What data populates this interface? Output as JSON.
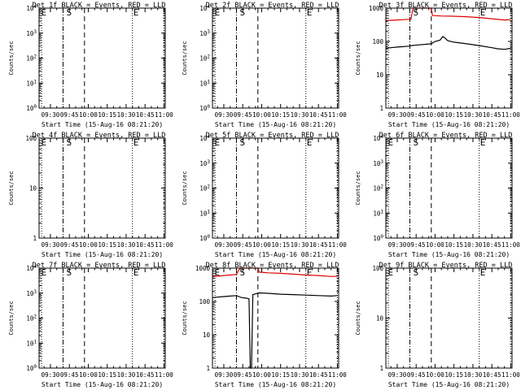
{
  "figure": {
    "xlabel": "Start Time (15-Aug-16 08:21:20)",
    "ylabel": "Counts/sec",
    "x_tick_labels": [
      "09:30",
      "09:45",
      "10:00",
      "10:15",
      "10:30",
      "10:45",
      "11:00"
    ],
    "marker_E": "E",
    "marker_S": "S",
    "colors": {
      "events": "#000000",
      "lld": "#dd0000"
    }
  },
  "chart_data": [
    {
      "type": "line",
      "title": "Det 1f BLACK = Events, RED = LLD",
      "yscale": "log",
      "xlim": [
        "09:21",
        "11:01"
      ],
      "ylim": [
        1,
        10000
      ],
      "y_tick_labels": [
        "10^0",
        "10^1",
        "10^2",
        "10^3",
        "10^4"
      ],
      "series": [],
      "markers": [
        "E",
        "S",
        "E"
      ]
    },
    {
      "type": "line",
      "title": "Det 2f BLACK = Events, RED = LLD",
      "yscale": "log",
      "xlim": [
        "09:21",
        "11:01"
      ],
      "ylim": [
        1,
        10000
      ],
      "y_tick_labels": [
        "10^0",
        "10^1",
        "10^2",
        "10^3",
        "10^4"
      ],
      "series": [],
      "markers": [
        "E",
        "S",
        "E"
      ]
    },
    {
      "type": "line",
      "title": "Det 3f BLACK = Events, RED = LLD",
      "yscale": "log",
      "xlim": [
        "09:21",
        "11:01"
      ],
      "ylim": [
        1,
        1000
      ],
      "y_tick_labels": [
        "1",
        "10",
        "100",
        "1000"
      ],
      "series": [
        {
          "color": "#dd0000",
          "x": [
            "09:21",
            "09:25",
            "09:30",
            "09:35",
            "09:39",
            "09:41",
            "09:42",
            "09:43",
            "09:44",
            "09:48",
            "09:55",
            "09:57",
            "09:58",
            "10:05",
            "10:15",
            "10:25",
            "10:35",
            "10:45",
            "10:55",
            "11:00"
          ],
          "y": [
            420,
            430,
            440,
            450,
            460,
            470,
            800,
            1000,
            1000,
            1000,
            1000,
            1000,
            600,
            580,
            570,
            550,
            520,
            480,
            440,
            450
          ]
        },
        {
          "color": "#000000",
          "x": [
            "09:21",
            "09:25",
            "09:30",
            "09:35",
            "09:39",
            "09:41",
            "09:57",
            "09:58",
            "10:00",
            "10:04",
            "10:06",
            "10:08",
            "10:10",
            "10:15",
            "10:25",
            "10:35",
            "10:45",
            "10:50",
            "10:55",
            "11:00"
          ],
          "y": [
            62,
            65,
            68,
            70,
            72,
            75,
            85,
            90,
            100,
            110,
            140,
            125,
            105,
            95,
            85,
            75,
            65,
            60,
            58,
            62
          ]
        }
      ],
      "markers": [
        "S",
        "E"
      ]
    },
    {
      "type": "line",
      "title": "Det 4f BLACK = Events, RED = LLD",
      "yscale": "log",
      "xlim": [
        "09:21",
        "11:01"
      ],
      "ylim": [
        1,
        100
      ],
      "y_tick_labels": [
        "1",
        "10",
        "100"
      ],
      "series": [],
      "markers": [
        "E",
        "S",
        "E"
      ]
    },
    {
      "type": "line",
      "title": "Det 5f BLACK = Events, RED = LLD",
      "yscale": "log",
      "xlim": [
        "09:21",
        "11:01"
      ],
      "ylim": [
        1,
        10000
      ],
      "y_tick_labels": [
        "10^0",
        "10^1",
        "10^2",
        "10^3",
        "10^4"
      ],
      "series": [],
      "markers": [
        "E",
        "S",
        "E"
      ]
    },
    {
      "type": "line",
      "title": "Det 6f BLACK = Events, RED = LLD",
      "yscale": "log",
      "xlim": [
        "09:21",
        "11:01"
      ],
      "ylim": [
        1,
        10000
      ],
      "y_tick_labels": [
        "10^0",
        "10^1",
        "10^2",
        "10^3",
        "10^4"
      ],
      "series": [],
      "markers": [
        "E",
        "S",
        "E"
      ]
    },
    {
      "type": "line",
      "title": "Det 7f BLACK = Events, RED = LLD",
      "yscale": "log",
      "xlim": [
        "09:21",
        "11:01"
      ],
      "ylim": [
        1,
        10000
      ],
      "y_tick_labels": [
        "10^0",
        "10^1",
        "10^2",
        "10^3",
        "10^4"
      ],
      "series": [],
      "markers": [
        "E",
        "S",
        "E"
      ]
    },
    {
      "type": "line",
      "title": "Det 8f BLACK = Events, RED = LLD",
      "yscale": "log",
      "xlim": [
        "09:21",
        "11:01"
      ],
      "ylim": [
        1,
        1000
      ],
      "y_tick_labels": [
        "1",
        "10",
        "100",
        "1000"
      ],
      "series": [
        {
          "color": "#dd0000",
          "x": [
            "09:21",
            "09:25",
            "09:30",
            "09:35",
            "09:40",
            "09:42",
            "09:44",
            "09:50",
            "09:55",
            "09:57",
            "09:58",
            "10:05",
            "10:15",
            "10:25",
            "10:35",
            "10:45",
            "10:55",
            "11:00"
          ],
          "y": [
            560,
            570,
            600,
            620,
            650,
            900,
            1000,
            1000,
            1000,
            1000,
            760,
            720,
            700,
            660,
            620,
            600,
            560,
            570
          ]
        },
        {
          "color": "#000000",
          "x": [
            "09:21",
            "09:25",
            "09:30",
            "09:35",
            "09:40",
            "09:42",
            "09:44",
            "09:48",
            "09:50",
            "09:51",
            "09:52",
            "09:53",
            "09:58",
            "10:05",
            "10:15",
            "10:25",
            "10:35",
            "10:45",
            "10:55",
            "11:00"
          ],
          "y": [
            130,
            135,
            140,
            145,
            150,
            140,
            130,
            125,
            120,
            1,
            1,
            160,
            180,
            175,
            165,
            160,
            155,
            150,
            145,
            150
          ]
        }
      ],
      "markers": [
        "E",
        "S",
        "E"
      ]
    },
    {
      "type": "line",
      "title": "Det 9f BLACK = Events, RED = LLD",
      "yscale": "log",
      "xlim": [
        "09:21",
        "11:01"
      ],
      "ylim": [
        1,
        100
      ],
      "y_tick_labels": [
        "1",
        "10",
        "100"
      ],
      "series": [],
      "markers": [
        "E",
        "S",
        "E"
      ]
    }
  ]
}
